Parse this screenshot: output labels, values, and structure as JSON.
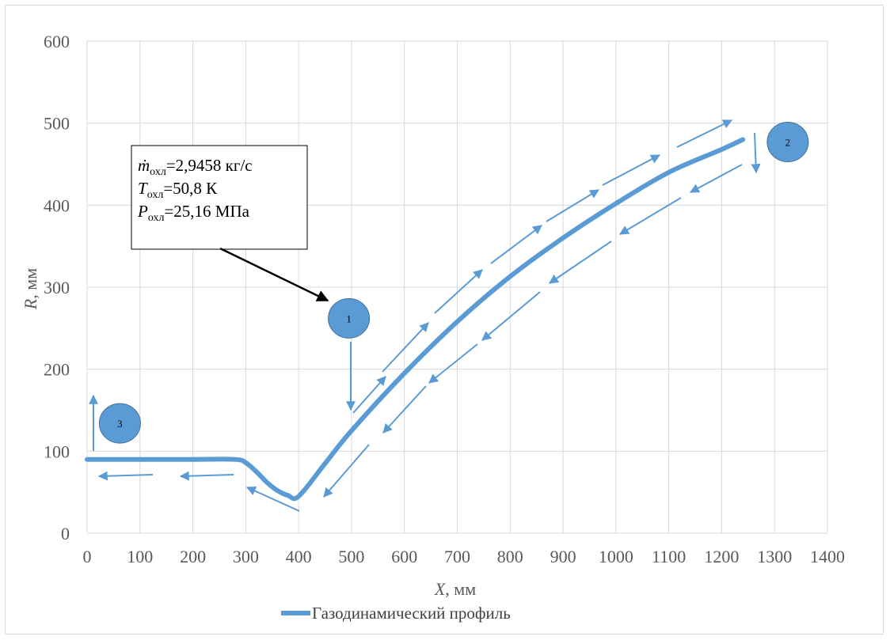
{
  "chart_data": {
    "type": "line",
    "xlabel_var": "X",
    "xlabel_unit": ", мм",
    "ylabel_var": "R",
    "ylabel_unit": ", мм",
    "xlim": [
      0,
      1400
    ],
    "ylim": [
      0,
      600
    ],
    "xticks": [
      0,
      100,
      200,
      300,
      400,
      500,
      600,
      700,
      800,
      900,
      1000,
      1100,
      1200,
      1300,
      1400
    ],
    "yticks": [
      0,
      100,
      200,
      300,
      400,
      500,
      600
    ],
    "grid": true,
    "legend_position": "bottom",
    "series": [
      {
        "name": "Газодинамический профиль",
        "color": "#5b9bd5",
        "x": [
          0,
          100,
          200,
          280,
          300,
          320,
          340,
          360,
          380,
          400,
          450,
          500,
          600,
          700,
          800,
          900,
          1000,
          1100,
          1200,
          1240
        ],
        "y": [
          90,
          90,
          90,
          90,
          86,
          75,
          62,
          52,
          46,
          45,
          85,
          125,
          195,
          258,
          313,
          360,
          402,
          440,
          468,
          480
        ]
      }
    ],
    "annotation_box": {
      "line1_var": "ṁ",
      "line1_sub": "охл",
      "line1_val": "=2,9458 кг/с",
      "line2_var": "T",
      "line2_sub": "охл",
      "line2_val": "=50,8 К",
      "line3_var": "P",
      "line3_sub": "охл",
      "line3_val": "=25,16 МПа"
    },
    "markers": [
      {
        "label": "1",
        "x": 495,
        "y": 262
      },
      {
        "label": "2",
        "x": 1325,
        "y": 477
      },
      {
        "label": "3",
        "x": 62,
        "y": 134
      }
    ],
    "colors": {
      "line": "#5b9bd5",
      "circle": "#5b9bd5",
      "grid": "#d9d9d9",
      "arrow_black": "#000000"
    }
  }
}
